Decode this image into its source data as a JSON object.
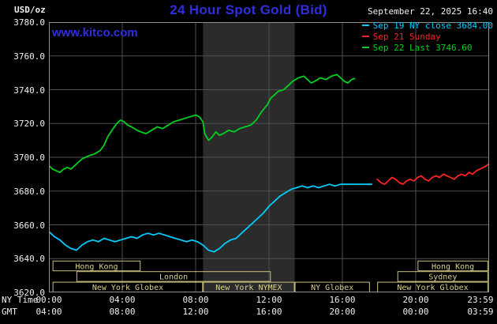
{
  "header": {
    "unit_label": "USD/oz",
    "title": "24 Hour Spot Gold (Bid)",
    "datetime": "September 22, 2025 16:40",
    "watermark": "www.kitco.com",
    "legend": [
      {
        "label": "Sep 19 NY close 3684.00",
        "color": "#00ccff"
      },
      {
        "label": "Sep 21 Sunday",
        "color": "#ff2222"
      },
      {
        "label": "Sep 22 Last 3746.60",
        "color": "#00d020"
      }
    ]
  },
  "axis_labels": {
    "ny_time": "NY Time",
    "gmt": "GMT"
  },
  "chart_data": {
    "type": "line",
    "title": "24 Hour Spot Gold (Bid)",
    "xlabel": "NY Time",
    "ylabel": "USD/oz",
    "ylim": [
      3620,
      3780
    ],
    "x_range_hours": [
      0,
      24
    ],
    "grid": true,
    "legend_position": "top-right",
    "y_tick_labels": [
      "3780.0",
      "3760.0",
      "3740.0",
      "3720.0",
      "3700.0",
      "3680.0",
      "3660.0",
      "3640.0",
      "3620.0"
    ],
    "x_ticks_hours": [
      0,
      4,
      8,
      12,
      16,
      20,
      23.983
    ],
    "x_tick_labels_ny": [
      "00:00",
      "04:00",
      "08:00",
      "12:00",
      "16:00",
      "20:00",
      "23:59"
    ],
    "x_tick_labels_gmt": [
      "04:00",
      "08:00",
      "12:00",
      "16:00",
      "20:00",
      "00:00",
      "03:59"
    ],
    "colors": {
      "grid": "#4f4f4f",
      "plot_border": "#909090",
      "session_box": "#c9bf7e",
      "session_text": "#d9cf90",
      "background": "#000000",
      "title_blue": "#2e2ede"
    },
    "shaded_region": {
      "name": "New York NYMEX floor session",
      "start": 8.4,
      "end": 13.4,
      "color": "#2b2b2b"
    },
    "sessions": [
      {
        "label": "Hong Kong",
        "row": 0,
        "start": 0.2,
        "end": 5.0
      },
      {
        "label": "Hong Kong",
        "row": 0,
        "start": 20.1,
        "end": 23.95
      },
      {
        "label": "London",
        "row": 1,
        "start": 1.5,
        "end": 12.1
      },
      {
        "label": "Sydney",
        "row": 1,
        "start": 19.0,
        "end": 23.95
      },
      {
        "label": "New York Globex",
        "row": 2,
        "start": 0.2,
        "end": 8.4
      },
      {
        "label": "New York NYMEX",
        "row": 2,
        "start": 8.4,
        "end": 13.4
      },
      {
        "label": "NY Globex",
        "row": 2,
        "start": 13.4,
        "end": 17.5
      },
      {
        "label": "New York Globex",
        "row": 2,
        "start": 17.9,
        "end": 23.95
      }
    ],
    "series": [
      {
        "name": "Sep 19 NY close 3684.00",
        "color": "#00ccff",
        "points": [
          [
            0,
            3656
          ],
          [
            0.3,
            3653
          ],
          [
            0.6,
            3651
          ],
          [
            0.9,
            3648
          ],
          [
            1.2,
            3646
          ],
          [
            1.5,
            3645
          ],
          [
            1.8,
            3648
          ],
          [
            2.1,
            3650
          ],
          [
            2.4,
            3651
          ],
          [
            2.7,
            3650
          ],
          [
            3,
            3652
          ],
          [
            3.3,
            3651
          ],
          [
            3.6,
            3650
          ],
          [
            3.9,
            3651
          ],
          [
            4.2,
            3652
          ],
          [
            4.5,
            3653
          ],
          [
            4.8,
            3652
          ],
          [
            5.1,
            3654
          ],
          [
            5.4,
            3655
          ],
          [
            5.7,
            3654
          ],
          [
            6,
            3655
          ],
          [
            6.3,
            3654
          ],
          [
            6.6,
            3653
          ],
          [
            6.9,
            3652
          ],
          [
            7.2,
            3651
          ],
          [
            7.5,
            3650
          ],
          [
            7.8,
            3651
          ],
          [
            8.1,
            3650
          ],
          [
            8.4,
            3648
          ],
          [
            8.7,
            3645
          ],
          [
            9,
            3644
          ],
          [
            9.3,
            3646
          ],
          [
            9.6,
            3649
          ],
          [
            9.9,
            3651
          ],
          [
            10.2,
            3652
          ],
          [
            10.5,
            3655
          ],
          [
            10.8,
            3658
          ],
          [
            11.1,
            3661
          ],
          [
            11.4,
            3664
          ],
          [
            11.7,
            3667
          ],
          [
            12,
            3671
          ],
          [
            12.3,
            3674
          ],
          [
            12.6,
            3677
          ],
          [
            12.9,
            3679
          ],
          [
            13.2,
            3681
          ],
          [
            13.5,
            3682
          ],
          [
            13.8,
            3683
          ],
          [
            14.1,
            3682
          ],
          [
            14.4,
            3683
          ],
          [
            14.7,
            3682
          ],
          [
            15,
            3683
          ],
          [
            15.3,
            3684
          ],
          [
            15.6,
            3683
          ],
          [
            15.9,
            3684
          ],
          [
            16.3,
            3684
          ],
          [
            16.8,
            3684
          ],
          [
            17.3,
            3684
          ],
          [
            17.6,
            3684
          ]
        ]
      },
      {
        "name": "Sep 21 Sunday",
        "color": "#ff2222",
        "points": [
          [
            17.9,
            3687
          ],
          [
            18.1,
            3685
          ],
          [
            18.3,
            3684
          ],
          [
            18.5,
            3686
          ],
          [
            18.7,
            3688
          ],
          [
            18.9,
            3687
          ],
          [
            19.1,
            3685
          ],
          [
            19.3,
            3684
          ],
          [
            19.5,
            3686
          ],
          [
            19.7,
            3687
          ],
          [
            19.9,
            3686
          ],
          [
            20.1,
            3688
          ],
          [
            20.3,
            3689
          ],
          [
            20.5,
            3687
          ],
          [
            20.7,
            3686
          ],
          [
            20.9,
            3688
          ],
          [
            21.1,
            3689
          ],
          [
            21.3,
            3688
          ],
          [
            21.5,
            3690
          ],
          [
            21.7,
            3689
          ],
          [
            21.9,
            3688
          ],
          [
            22.1,
            3687
          ],
          [
            22.3,
            3689
          ],
          [
            22.5,
            3690
          ],
          [
            22.7,
            3689
          ],
          [
            22.9,
            3691
          ],
          [
            23.1,
            3690
          ],
          [
            23.3,
            3692
          ],
          [
            23.5,
            3693
          ],
          [
            23.7,
            3694
          ],
          [
            23.85,
            3695
          ],
          [
            23.98,
            3696
          ]
        ]
      },
      {
        "name": "Sep 22 Last 3746.60",
        "color": "#00d020",
        "points": [
          [
            0,
            3695
          ],
          [
            0.2,
            3693
          ],
          [
            0.4,
            3692
          ],
          [
            0.6,
            3691
          ],
          [
            0.8,
            3693
          ],
          [
            1,
            3694
          ],
          [
            1.2,
            3693
          ],
          [
            1.5,
            3696
          ],
          [
            1.8,
            3699
          ],
          [
            2,
            3700
          ],
          [
            2.2,
            3701
          ],
          [
            2.5,
            3702
          ],
          [
            2.8,
            3704
          ],
          [
            3,
            3707
          ],
          [
            3.2,
            3712
          ],
          [
            3.5,
            3717
          ],
          [
            3.7,
            3720
          ],
          [
            3.9,
            3722
          ],
          [
            4.1,
            3721
          ],
          [
            4.3,
            3719
          ],
          [
            4.5,
            3718
          ],
          [
            4.8,
            3716
          ],
          [
            5,
            3715
          ],
          [
            5.3,
            3714
          ],
          [
            5.6,
            3716
          ],
          [
            5.9,
            3718
          ],
          [
            6.2,
            3717
          ],
          [
            6.5,
            3719
          ],
          [
            6.8,
            3721
          ],
          [
            7.1,
            3722
          ],
          [
            7.4,
            3723
          ],
          [
            7.7,
            3724
          ],
          [
            8,
            3725
          ],
          [
            8.2,
            3724
          ],
          [
            8.4,
            3721
          ],
          [
            8.5,
            3714
          ],
          [
            8.7,
            3710
          ],
          [
            8.9,
            3712
          ],
          [
            9.1,
            3715
          ],
          [
            9.3,
            3713
          ],
          [
            9.5,
            3714
          ],
          [
            9.8,
            3716
          ],
          [
            10.1,
            3715
          ],
          [
            10.4,
            3717
          ],
          [
            10.7,
            3718
          ],
          [
            11,
            3719
          ],
          [
            11.3,
            3722
          ],
          [
            11.6,
            3727
          ],
          [
            11.9,
            3731
          ],
          [
            12.1,
            3735
          ],
          [
            12.3,
            3737
          ],
          [
            12.5,
            3739
          ],
          [
            12.8,
            3740
          ],
          [
            13,
            3742
          ],
          [
            13.3,
            3745
          ],
          [
            13.6,
            3747
          ],
          [
            13.9,
            3748
          ],
          [
            14.1,
            3746
          ],
          [
            14.3,
            3744
          ],
          [
            14.5,
            3745
          ],
          [
            14.8,
            3747
          ],
          [
            15.1,
            3746
          ],
          [
            15.4,
            3748
          ],
          [
            15.7,
            3749
          ],
          [
            15.9,
            3747
          ],
          [
            16.1,
            3745
          ],
          [
            16.3,
            3744
          ],
          [
            16.5,
            3746
          ],
          [
            16.67,
            3746.6
          ]
        ]
      }
    ]
  }
}
